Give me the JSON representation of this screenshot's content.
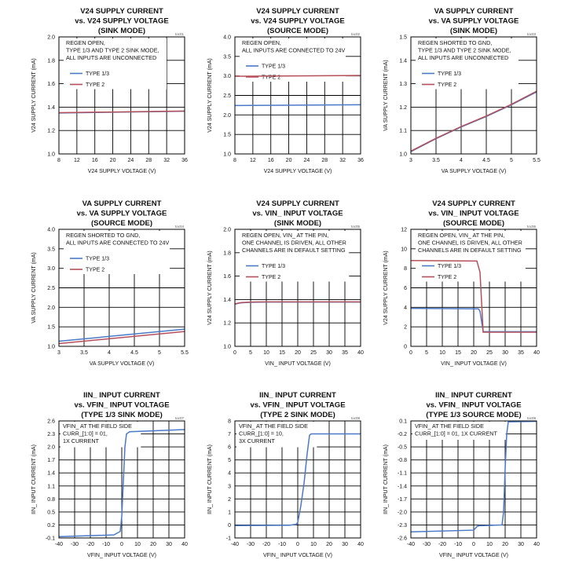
{
  "colors": {
    "blue": "#4a79c7",
    "red": "#b5505a",
    "grid": "#000000"
  },
  "chart_data": [
    {
      "type": "line",
      "title_lines": [
        "V24 SUPPLY CURRENT",
        "vs. V24 SUPPLY VOLTAGE",
        "(SINK MODE)"
      ],
      "tag": "toc01",
      "xlabel": "V24 SUPPLY VOLTAGE (V)",
      "ylabel": "V24 SUPPLY CURRENT (mA)",
      "x_ticks": [
        "8",
        "12",
        "16",
        "20",
        "24",
        "28",
        "32",
        "36"
      ],
      "y_ticks": [
        "1.0",
        "1.2",
        "1.4",
        "1.6",
        "1.8",
        "2.0"
      ],
      "xlim": [
        8,
        36
      ],
      "ylim": [
        1.0,
        2.0
      ],
      "notes": [
        "REGEN OPEN,",
        "TYPE 1/3 AND TYPE 2 SINK MODE,",
        "ALL INPUTS ARE UNCONNECTED"
      ],
      "legend": [
        "TYPE 1/3",
        "TYPE 2"
      ],
      "series": [
        {
          "name": "TYPE 1/3",
          "x": [
            8,
            36
          ],
          "y": [
            1.35,
            1.365
          ]
        },
        {
          "name": "TYPE 2",
          "x": [
            8,
            36
          ],
          "y": [
            1.352,
            1.367
          ]
        }
      ]
    },
    {
      "type": "line",
      "title_lines": [
        "V24 SUPPLY CURRENT",
        "vs. V24 SUPPLY VOLTAGE",
        "(SOURCE MODE)"
      ],
      "tag": "toc02",
      "xlabel": "V24 SUPPLY VOLTAGE (V)",
      "ylabel": "V24 SUPPLY CURRENT (mA)",
      "x_ticks": [
        "8",
        "12",
        "16",
        "20",
        "24",
        "28",
        "32",
        "36"
      ],
      "y_ticks": [
        "1.0",
        "1.5",
        "2.0",
        "2.5",
        "3.0",
        "3.5",
        "4.0"
      ],
      "xlim": [
        8,
        36
      ],
      "ylim": [
        1.0,
        4.0
      ],
      "notes": [
        "REGEN OPEN,",
        "ALL INPUTS ARE CONNECTED TO 24V"
      ],
      "legend": [
        "TYPE 1/3",
        "TYPE 2"
      ],
      "series": [
        {
          "name": "TYPE 1/3",
          "x": [
            8,
            36
          ],
          "y": [
            2.24,
            2.26
          ]
        },
        {
          "name": "TYPE 2",
          "x": [
            8,
            36
          ],
          "y": [
            2.99,
            3.01
          ]
        }
      ]
    },
    {
      "type": "line",
      "title_lines": [
        "VA SUPPLY CURRENT",
        "vs. VA SUPPLY VOLTAGE",
        "(SINK MODE)"
      ],
      "tag": "toc03",
      "xlabel": "VA SUPPLY VOLTAGE (V)",
      "ylabel": "VA SUPPLY CURRENT (mA)",
      "x_ticks": [
        "3",
        "3.5",
        "4",
        "4.5",
        "5",
        "5.5"
      ],
      "y_ticks": [
        "1.0",
        "1.1",
        "1.2",
        "1.3",
        "1.4",
        "1.5"
      ],
      "xlim": [
        3,
        5.5
      ],
      "ylim": [
        1.0,
        1.5
      ],
      "notes": [
        "REGEN SHORTED TO GND,",
        "TYPE 1/3 AND TYPE 2 SINK MODE,",
        "ALL INPUTS ARE UNCONNECTED"
      ],
      "legend": [
        "TYPE 1/3",
        "TYPE 2"
      ],
      "series": [
        {
          "name": "TYPE 1/3",
          "x": [
            3,
            3.5,
            4,
            4.5,
            5,
            5.5
          ],
          "y": [
            1.01,
            1.065,
            1.115,
            1.16,
            1.21,
            1.265
          ]
        },
        {
          "name": "TYPE 2",
          "x": [
            3,
            3.5,
            4,
            4.5,
            5,
            5.5
          ],
          "y": [
            1.012,
            1.067,
            1.117,
            1.162,
            1.212,
            1.268
          ]
        }
      ]
    },
    {
      "type": "line",
      "title_lines": [
        "VA SUPPLY CURRENT",
        "vs. VA SUPPLY VOLTAGE",
        "(SOURCE MODE)"
      ],
      "tag": "toc04",
      "xlabel": "VA SUPPLY VOLTAGE (V)",
      "ylabel": "VA SUPPLY CURRENT (mA)",
      "x_ticks": [
        "3",
        "3.5",
        "4",
        "4.5",
        "5",
        "5.5"
      ],
      "y_ticks": [
        "1.0",
        "1.5",
        "2.0",
        "2.5",
        "3.0",
        "3.5",
        "4.0"
      ],
      "xlim": [
        3,
        5.5
      ],
      "ylim": [
        1.0,
        4.0
      ],
      "notes": [
        "REGEN SHORTED TO GND,",
        "ALL INPUTS ARE CONNECTED TO 24V"
      ],
      "legend": [
        "TYPE 1/3",
        "TYPE 2"
      ],
      "series": [
        {
          "name": "TYPE 1/3",
          "x": [
            3,
            5.5
          ],
          "y": [
            1.13,
            1.44
          ]
        },
        {
          "name": "TYPE 2",
          "x": [
            3,
            5.5
          ],
          "y": [
            1.07,
            1.38
          ]
        }
      ]
    },
    {
      "type": "line",
      "title_lines": [
        "V24 SUPPLY CURRENT",
        "vs. VIN_ INPUT VOLTAGE",
        "(SINK MODE)"
      ],
      "tag": "toc05",
      "xlabel": "VIN_ INPUT VOLTAGE (V)",
      "ylabel": "V24 SUPPLY CURRENT (mA)",
      "x_ticks": [
        "0",
        "5",
        "10",
        "15",
        "20",
        "25",
        "30",
        "35",
        "40"
      ],
      "y_ticks": [
        "1.0",
        "1.2",
        "1.4",
        "1.6",
        "1.8",
        "2.0"
      ],
      "xlim": [
        0,
        40
      ],
      "ylim": [
        1.0,
        2.0
      ],
      "notes": [
        "REGEN OPEN, VIN_ AT THE PIN,",
        "ONE CHANNEL IS DRIVEN, ALL OTHER",
        "CHANNELS ARE IN DEFAULT SETTING"
      ],
      "legend": [
        "TYPE 1/3",
        "TYPE 2"
      ],
      "series": [
        {
          "name": "TYPE 1/3",
          "x": [
            0,
            1,
            2,
            4,
            6,
            10,
            40
          ],
          "y": [
            1.36,
            1.367,
            1.372,
            1.375,
            1.377,
            1.378,
            1.378
          ]
        },
        {
          "name": "TYPE 2",
          "x": [
            0,
            1,
            2,
            4,
            6,
            10,
            40
          ],
          "y": [
            1.362,
            1.369,
            1.374,
            1.377,
            1.379,
            1.38,
            1.38
          ]
        }
      ]
    },
    {
      "type": "line",
      "title_lines": [
        "V24 SUPPLY CURRENT",
        "vs. VIN_ INPUT VOLTAGE",
        "(SOURCE MODE)"
      ],
      "tag": "toc06",
      "xlabel": "VIN_ INPUT VOLTAGE (V)",
      "ylabel": "V24 SUPPLY CURRENT (mA)",
      "x_ticks": [
        "0",
        "5",
        "10",
        "15",
        "20",
        "25",
        "30",
        "35",
        "40"
      ],
      "y_ticks": [
        "0",
        "2",
        "4",
        "6",
        "8",
        "10",
        "12"
      ],
      "xlim": [
        0,
        40
      ],
      "ylim": [
        0,
        12
      ],
      "notes": [
        "REGEN OPEN, VIN_ AT THE PIN,",
        "ONE CHANNEL IS DRIVEN, ALL OTHER",
        "CHANNELS ARE IN DEFAULT SETTING"
      ],
      "legend": [
        "TYPE 1/3",
        "TYPE 2"
      ],
      "series": [
        {
          "name": "TYPE 1/3",
          "x": [
            0,
            21.5,
            22,
            23,
            40
          ],
          "y": [
            3.9,
            3.85,
            3.6,
            1.5,
            1.5
          ]
        },
        {
          "name": "TYPE 2",
          "x": [
            0,
            21,
            22,
            23,
            40
          ],
          "y": [
            8.8,
            8.75,
            7.6,
            1.45,
            1.45
          ]
        }
      ]
    },
    {
      "type": "line",
      "title_lines": [
        "IIN_ INPUT CURRENT",
        "vs. VFIN_ INPUT VOLTAGE",
        "(TYPE 1/3 SINK MODE)"
      ],
      "tag": "toc07",
      "xlabel": "VFIN_ INPUT VOLTAGE (V)",
      "ylabel": "IIN_ INPUT CURRENT (mA)",
      "x_ticks": [
        "-40",
        "-30",
        "-20",
        "-10",
        "0",
        "10",
        "20",
        "30",
        "40"
      ],
      "y_ticks": [
        "-0.1",
        "0.2",
        "0.5",
        "0.8",
        "1.1",
        "1.4",
        "1.7",
        "2.0",
        "2.3",
        "2.6"
      ],
      "xlim": [
        -40,
        40
      ],
      "ylim": [
        -0.1,
        2.6
      ],
      "notes": [
        "VFIN_ AT THE FIELD SIDE",
        "CURR_[1:0] = 01,",
        "1X CURRENT"
      ],
      "legend": [],
      "series": [
        {
          "name": "TYPE 1/3",
          "x": [
            -40,
            -5,
            -1,
            0,
            1,
            2,
            3,
            5,
            40
          ],
          "y": [
            -0.07,
            -0.03,
            0.05,
            0.4,
            1.2,
            2.0,
            2.3,
            2.35,
            2.4
          ]
        }
      ]
    },
    {
      "type": "line",
      "title_lines": [
        "IIN_ INPUT CURRENT",
        "vs. VFIN_ INPUT VOLTAGE",
        "(TYPE 2 SINK MODE)"
      ],
      "tag": "toc08",
      "xlabel": "VFIN_ INPUT VOLTAGE (V)",
      "ylabel": "IIN_ INPUT CURRENT (mA)",
      "x_ticks": [
        "-40",
        "-30",
        "-20",
        "-10",
        "0",
        "10",
        "20",
        "30",
        "40"
      ],
      "y_ticks": [
        "-1",
        "0",
        "1",
        "2",
        "3",
        "4",
        "5",
        "6",
        "7",
        "8"
      ],
      "xlim": [
        -40,
        40
      ],
      "ylim": [
        -1,
        8
      ],
      "notes": [
        "VFIN_ AT THE FIELD SIDE",
        "CURR_[1:0] = 10,",
        "3X CURRENT"
      ],
      "legend": [],
      "series": [
        {
          "name": "TYPE 2",
          "x": [
            -40,
            -5,
            -1,
            0,
            2,
            4,
            6,
            7.5,
            8.5,
            40
          ],
          "y": [
            -0.05,
            -0.02,
            0.05,
            0.2,
            1.5,
            3.2,
            5.5,
            6.9,
            7.0,
            7.0
          ]
        }
      ]
    },
    {
      "type": "line",
      "title_lines": [
        "IIN_ INPUT CURRENT",
        "vs. VFIN_ INPUT VOLTAGE",
        "(TYPE 1/3 SOURCE MODE)"
      ],
      "tag": "toc09",
      "xlabel": "VFIN_ INPUT VOLTAGE (V)",
      "ylabel": "IIN_ INPUT CURRENT (mA)",
      "x_ticks": [
        "-40",
        "-30",
        "-20",
        "-10",
        "0",
        "10",
        "20",
        "30",
        "40"
      ],
      "y_ticks": [
        "-2.6",
        "-2.3",
        "-2.0",
        "-1.7",
        "-1.4",
        "-1.1",
        "-0.8",
        "-0.5",
        "-0.2",
        "0.1"
      ],
      "xlim": [
        -40,
        40
      ],
      "ylim": [
        -2.6,
        0.1
      ],
      "notes": [
        "VFIN_ AT THE FIELD SIDE",
        "CURR_[1:0] = 01, 1X CURRENT"
      ],
      "legend": [],
      "series": [
        {
          "name": "TYPE 1/3",
          "x": [
            -40,
            0,
            1,
            2,
            3,
            10,
            18,
            19,
            20,
            21,
            22,
            40
          ],
          "y": [
            -2.46,
            -2.42,
            -2.38,
            -2.34,
            -2.32,
            -2.31,
            -2.3,
            -2.0,
            -1.0,
            -0.2,
            0.08,
            0.09
          ]
        }
      ]
    }
  ]
}
